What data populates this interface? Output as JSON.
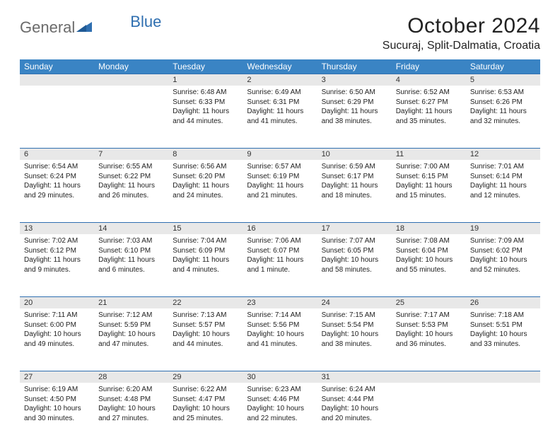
{
  "logo": {
    "text1": "General",
    "text2": "Blue"
  },
  "title": "October 2024",
  "location": "Sucuraj, Split-Dalmatia, Croatia",
  "colors": {
    "header_bg": "#3a84c4",
    "header_text": "#ffffff",
    "daynum_bg": "#e8e8e8",
    "border": "#2f6fb0",
    "logo_gray": "#6b6b6b",
    "logo_blue": "#2f6fb0"
  },
  "day_headers": [
    "Sunday",
    "Monday",
    "Tuesday",
    "Wednesday",
    "Thursday",
    "Friday",
    "Saturday"
  ],
  "weeks": [
    [
      null,
      null,
      {
        "n": "1",
        "sr": "Sunrise: 6:48 AM",
        "ss": "Sunset: 6:33 PM",
        "d1": "Daylight: 11 hours",
        "d2": "and 44 minutes."
      },
      {
        "n": "2",
        "sr": "Sunrise: 6:49 AM",
        "ss": "Sunset: 6:31 PM",
        "d1": "Daylight: 11 hours",
        "d2": "and 41 minutes."
      },
      {
        "n": "3",
        "sr": "Sunrise: 6:50 AM",
        "ss": "Sunset: 6:29 PM",
        "d1": "Daylight: 11 hours",
        "d2": "and 38 minutes."
      },
      {
        "n": "4",
        "sr": "Sunrise: 6:52 AM",
        "ss": "Sunset: 6:27 PM",
        "d1": "Daylight: 11 hours",
        "d2": "and 35 minutes."
      },
      {
        "n": "5",
        "sr": "Sunrise: 6:53 AM",
        "ss": "Sunset: 6:26 PM",
        "d1": "Daylight: 11 hours",
        "d2": "and 32 minutes."
      }
    ],
    [
      {
        "n": "6",
        "sr": "Sunrise: 6:54 AM",
        "ss": "Sunset: 6:24 PM",
        "d1": "Daylight: 11 hours",
        "d2": "and 29 minutes."
      },
      {
        "n": "7",
        "sr": "Sunrise: 6:55 AM",
        "ss": "Sunset: 6:22 PM",
        "d1": "Daylight: 11 hours",
        "d2": "and 26 minutes."
      },
      {
        "n": "8",
        "sr": "Sunrise: 6:56 AM",
        "ss": "Sunset: 6:20 PM",
        "d1": "Daylight: 11 hours",
        "d2": "and 24 minutes."
      },
      {
        "n": "9",
        "sr": "Sunrise: 6:57 AM",
        "ss": "Sunset: 6:19 PM",
        "d1": "Daylight: 11 hours",
        "d2": "and 21 minutes."
      },
      {
        "n": "10",
        "sr": "Sunrise: 6:59 AM",
        "ss": "Sunset: 6:17 PM",
        "d1": "Daylight: 11 hours",
        "d2": "and 18 minutes."
      },
      {
        "n": "11",
        "sr": "Sunrise: 7:00 AM",
        "ss": "Sunset: 6:15 PM",
        "d1": "Daylight: 11 hours",
        "d2": "and 15 minutes."
      },
      {
        "n": "12",
        "sr": "Sunrise: 7:01 AM",
        "ss": "Sunset: 6:14 PM",
        "d1": "Daylight: 11 hours",
        "d2": "and 12 minutes."
      }
    ],
    [
      {
        "n": "13",
        "sr": "Sunrise: 7:02 AM",
        "ss": "Sunset: 6:12 PM",
        "d1": "Daylight: 11 hours",
        "d2": "and 9 minutes."
      },
      {
        "n": "14",
        "sr": "Sunrise: 7:03 AM",
        "ss": "Sunset: 6:10 PM",
        "d1": "Daylight: 11 hours",
        "d2": "and 6 minutes."
      },
      {
        "n": "15",
        "sr": "Sunrise: 7:04 AM",
        "ss": "Sunset: 6:09 PM",
        "d1": "Daylight: 11 hours",
        "d2": "and 4 minutes."
      },
      {
        "n": "16",
        "sr": "Sunrise: 7:06 AM",
        "ss": "Sunset: 6:07 PM",
        "d1": "Daylight: 11 hours",
        "d2": "and 1 minute."
      },
      {
        "n": "17",
        "sr": "Sunrise: 7:07 AM",
        "ss": "Sunset: 6:05 PM",
        "d1": "Daylight: 10 hours",
        "d2": "and 58 minutes."
      },
      {
        "n": "18",
        "sr": "Sunrise: 7:08 AM",
        "ss": "Sunset: 6:04 PM",
        "d1": "Daylight: 10 hours",
        "d2": "and 55 minutes."
      },
      {
        "n": "19",
        "sr": "Sunrise: 7:09 AM",
        "ss": "Sunset: 6:02 PM",
        "d1": "Daylight: 10 hours",
        "d2": "and 52 minutes."
      }
    ],
    [
      {
        "n": "20",
        "sr": "Sunrise: 7:11 AM",
        "ss": "Sunset: 6:00 PM",
        "d1": "Daylight: 10 hours",
        "d2": "and 49 minutes."
      },
      {
        "n": "21",
        "sr": "Sunrise: 7:12 AM",
        "ss": "Sunset: 5:59 PM",
        "d1": "Daylight: 10 hours",
        "d2": "and 47 minutes."
      },
      {
        "n": "22",
        "sr": "Sunrise: 7:13 AM",
        "ss": "Sunset: 5:57 PM",
        "d1": "Daylight: 10 hours",
        "d2": "and 44 minutes."
      },
      {
        "n": "23",
        "sr": "Sunrise: 7:14 AM",
        "ss": "Sunset: 5:56 PM",
        "d1": "Daylight: 10 hours",
        "d2": "and 41 minutes."
      },
      {
        "n": "24",
        "sr": "Sunrise: 7:15 AM",
        "ss": "Sunset: 5:54 PM",
        "d1": "Daylight: 10 hours",
        "d2": "and 38 minutes."
      },
      {
        "n": "25",
        "sr": "Sunrise: 7:17 AM",
        "ss": "Sunset: 5:53 PM",
        "d1": "Daylight: 10 hours",
        "d2": "and 36 minutes."
      },
      {
        "n": "26",
        "sr": "Sunrise: 7:18 AM",
        "ss": "Sunset: 5:51 PM",
        "d1": "Daylight: 10 hours",
        "d2": "and 33 minutes."
      }
    ],
    [
      {
        "n": "27",
        "sr": "Sunrise: 6:19 AM",
        "ss": "Sunset: 4:50 PM",
        "d1": "Daylight: 10 hours",
        "d2": "and 30 minutes."
      },
      {
        "n": "28",
        "sr": "Sunrise: 6:20 AM",
        "ss": "Sunset: 4:48 PM",
        "d1": "Daylight: 10 hours",
        "d2": "and 27 minutes."
      },
      {
        "n": "29",
        "sr": "Sunrise: 6:22 AM",
        "ss": "Sunset: 4:47 PM",
        "d1": "Daylight: 10 hours",
        "d2": "and 25 minutes."
      },
      {
        "n": "30",
        "sr": "Sunrise: 6:23 AM",
        "ss": "Sunset: 4:46 PM",
        "d1": "Daylight: 10 hours",
        "d2": "and 22 minutes."
      },
      {
        "n": "31",
        "sr": "Sunrise: 6:24 AM",
        "ss": "Sunset: 4:44 PM",
        "d1": "Daylight: 10 hours",
        "d2": "and 20 minutes."
      },
      null,
      null
    ]
  ]
}
